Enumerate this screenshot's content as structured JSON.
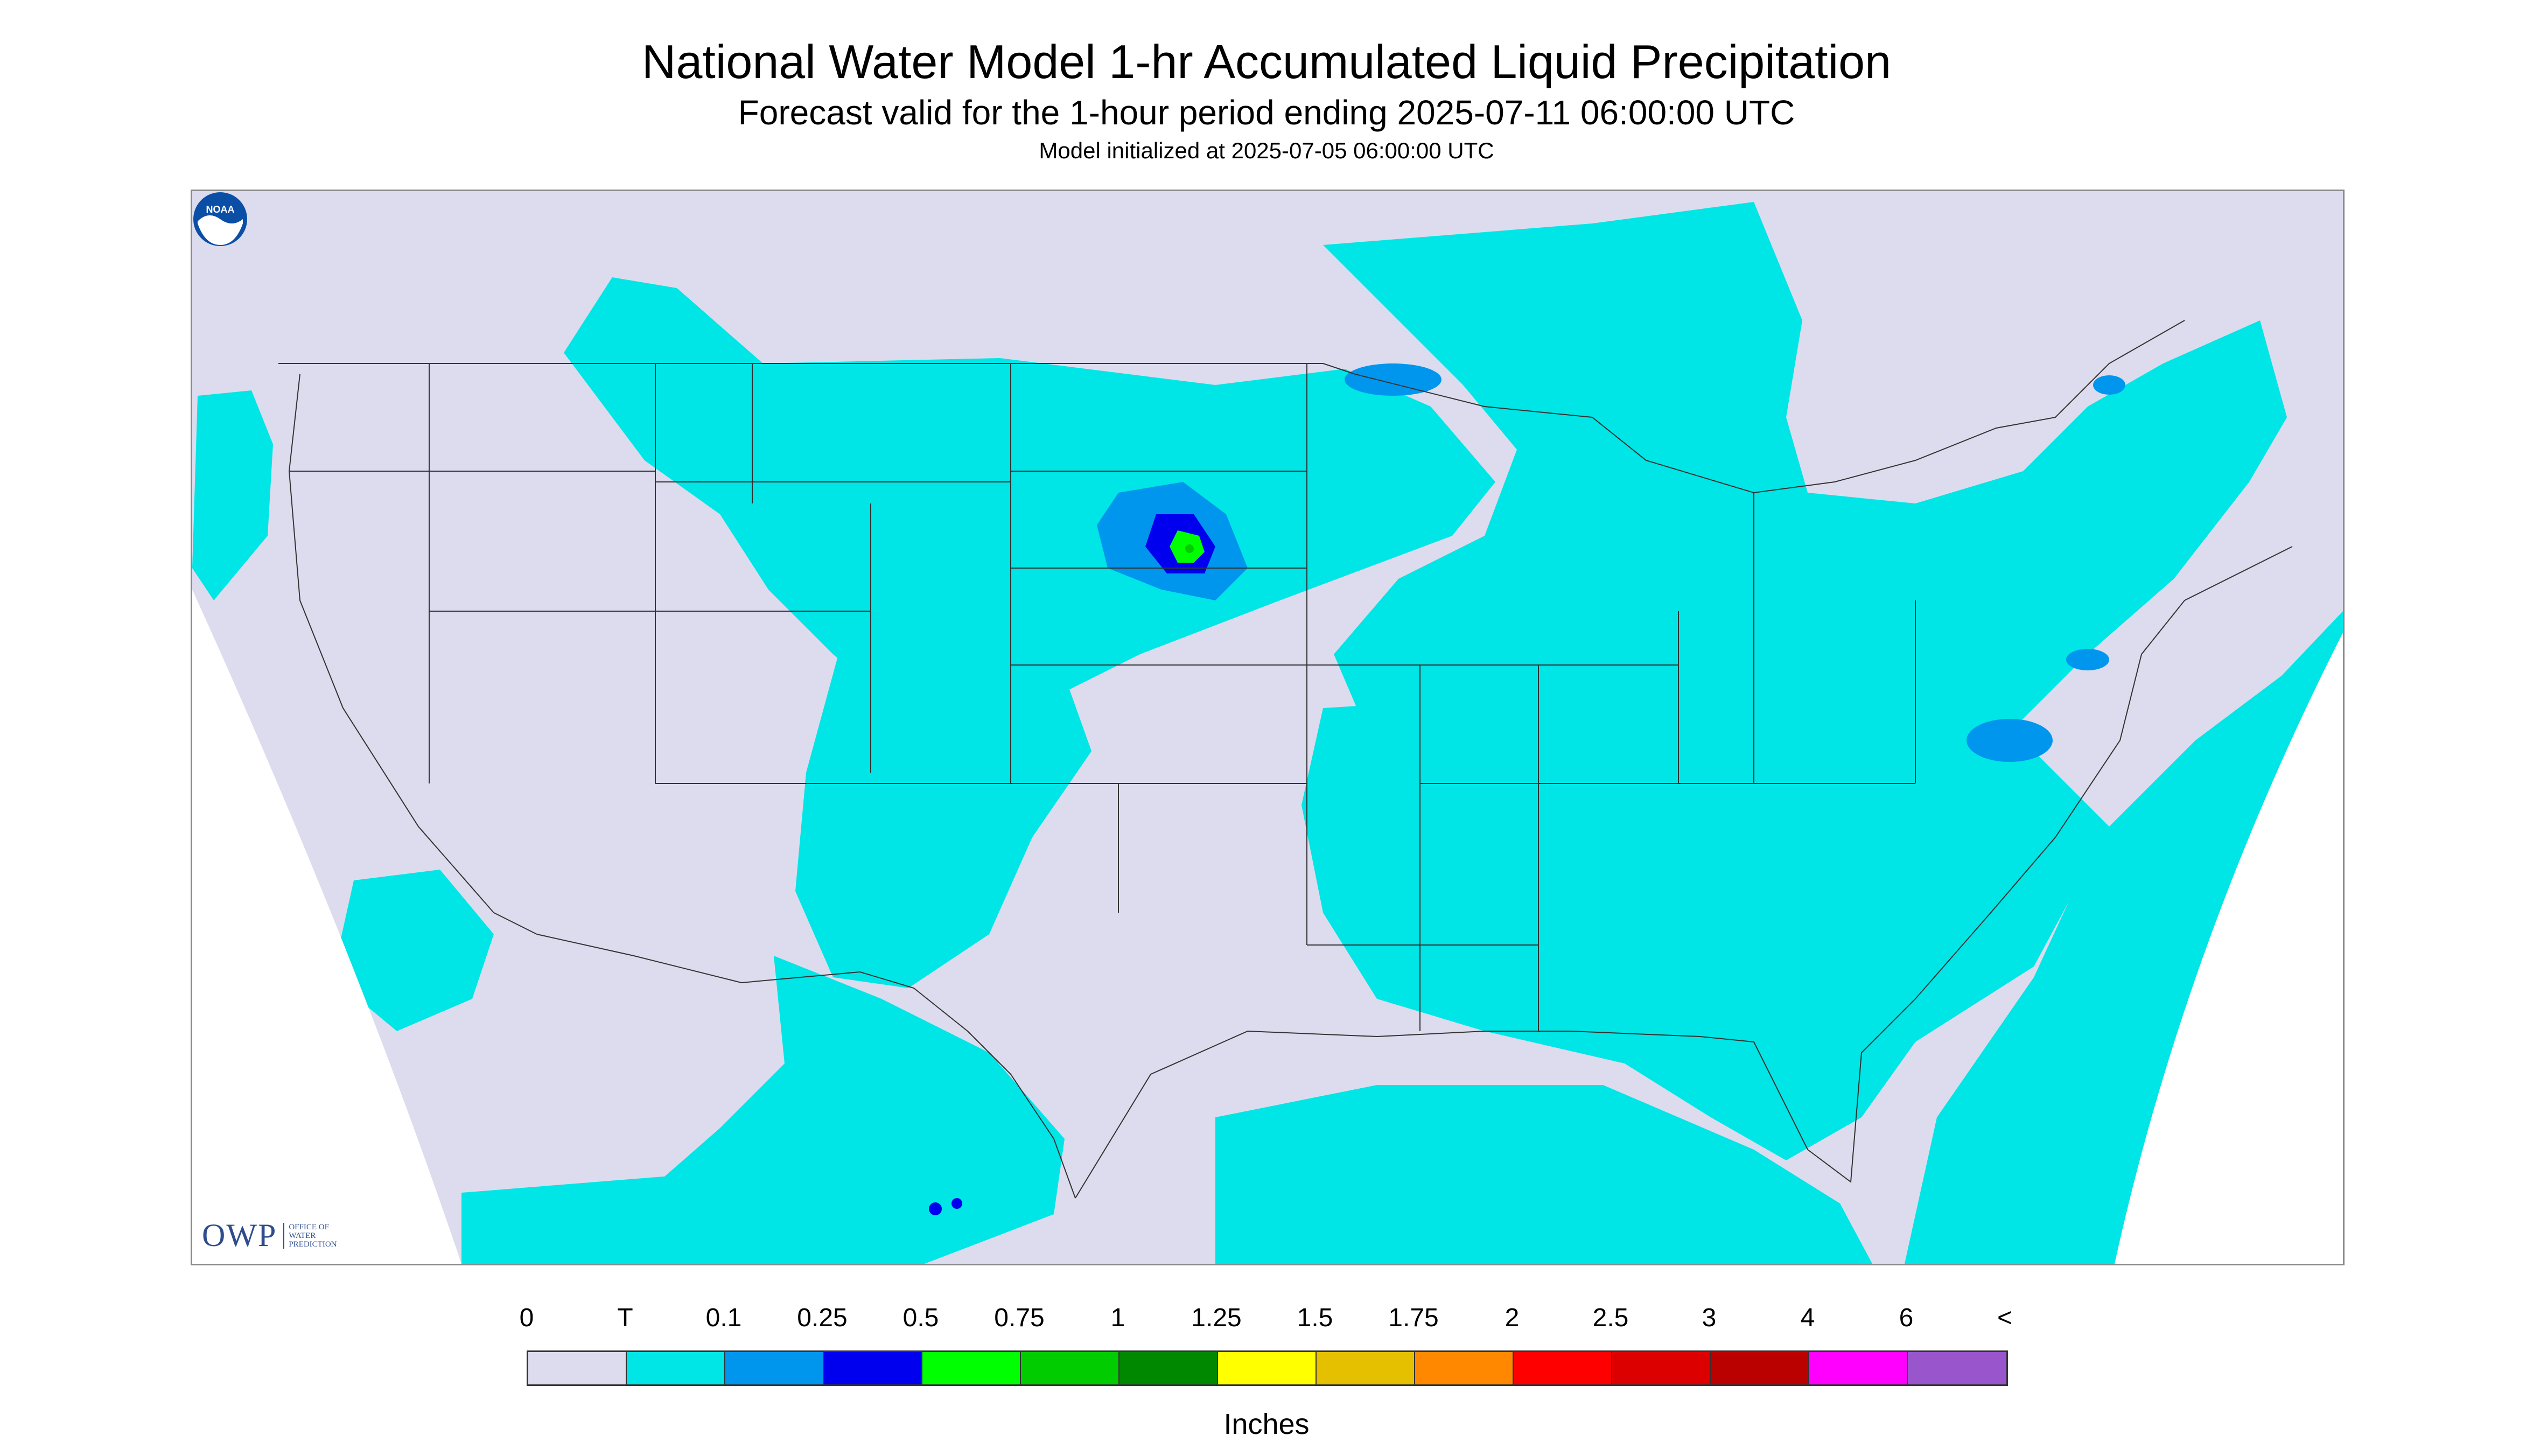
{
  "title": "National Water Model 1-hr Accumulated Liquid Precipitation",
  "subtitle": "Forecast valid for the 1-hour period ending 2025-07-11 06:00:00 UTC",
  "init_text": "Model initialized at 2025-07-05 06:00:00 UTC",
  "legend": {
    "units": "Inches",
    "labels": [
      "0",
      "T",
      "0.1",
      "0.25",
      "0.5",
      "0.75",
      "1",
      "1.25",
      "1.5",
      "1.75",
      "2",
      "2.5",
      "3",
      "4",
      "6",
      "<"
    ],
    "colors": [
      "#dcdcee",
      "#00e5e5",
      "#0096ee",
      "#0000ee",
      "#00ff00",
      "#00cc00",
      "#008800",
      "#ffff00",
      "#e5c000",
      "#ff8800",
      "#ff0000",
      "#dd0000",
      "#bb0000",
      "#ff00ff",
      "#9955cc"
    ]
  },
  "map": {
    "background_color": "#dcdcee",
    "trace_color": "#00e5e5",
    "light_color": "#0096ee",
    "moderate_color": "#0000ee",
    "heavy_color": "#00ff00",
    "heavy2_color": "#00cc00",
    "outside_color": "#ffffff",
    "border_color": "#333333"
  },
  "logos": {
    "owp_text": "OWP",
    "owp_subtext": "OFFICE OF WATER PREDICTION",
    "noaa_text": "NOAA"
  }
}
